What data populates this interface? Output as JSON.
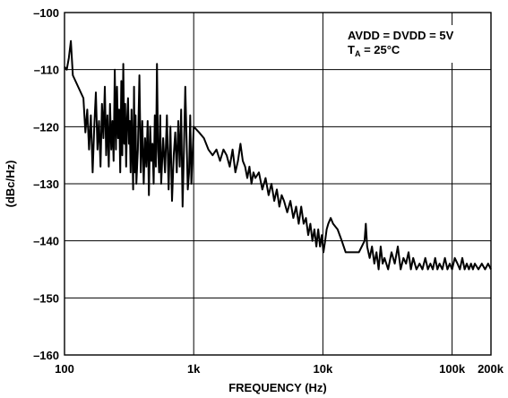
{
  "chart_data": {
    "type": "line",
    "title": "",
    "xlabel": "FREQUENCY (Hz)",
    "ylabel": "(dBc/Hz)",
    "x_scale": "log",
    "xlim": [
      100,
      200000
    ],
    "ylim": [
      -160,
      -100
    ],
    "grid": true,
    "x_ticks": [
      {
        "value": 100,
        "label": "100"
      },
      {
        "value": 1000,
        "label": "1k"
      },
      {
        "value": 10000,
        "label": "10k"
      },
      {
        "value": 100000,
        "label": "100k"
      },
      {
        "value": 200000,
        "label": "200k"
      }
    ],
    "y_ticks": [
      {
        "value": -100,
        "label": "–100"
      },
      {
        "value": -110,
        "label": "–110"
      },
      {
        "value": -120,
        "label": "–120"
      },
      {
        "value": -130,
        "label": "–130"
      },
      {
        "value": -140,
        "label": "–140"
      },
      {
        "value": -150,
        "label": "–150"
      },
      {
        "value": -160,
        "label": "–160"
      }
    ],
    "annotation": {
      "line1": "AVDD = DVDD = 5V",
      "line2_main": "T",
      "line2_sub": "A",
      "line2_rest": " = 25°C",
      "placement": "top-right"
    },
    "series": [
      {
        "color": "#000000",
        "points": [
          [
            100,
            -109.5
          ],
          [
            104,
            -110
          ],
          [
            108,
            -108
          ],
          [
            112,
            -105
          ],
          [
            116,
            -111
          ],
          [
            140,
            -115
          ],
          [
            145,
            -121
          ],
          [
            150,
            -117
          ],
          [
            155,
            -124
          ],
          [
            160,
            -118
          ],
          [
            165,
            -128
          ],
          [
            170,
            -120
          ],
          [
            175,
            -114
          ],
          [
            180,
            -124
          ],
          [
            185,
            -119
          ],
          [
            190,
            -127
          ],
          [
            195,
            -116
          ],
          [
            200,
            -122
          ],
          [
            205,
            -113
          ],
          [
            210,
            -125
          ],
          [
            215,
            -118
          ],
          [
            220,
            -127
          ],
          [
            225,
            -116
          ],
          [
            230,
            -124
          ],
          [
            235,
            -119
          ],
          [
            240,
            -126
          ],
          [
            245,
            -110
          ],
          [
            250,
            -124
          ],
          [
            255,
            -113
          ],
          [
            260,
            -122
          ],
          [
            265,
            -117
          ],
          [
            270,
            -128
          ],
          [
            275,
            -112
          ],
          [
            280,
            -125
          ],
          [
            285,
            -109
          ],
          [
            290,
            -123
          ],
          [
            295,
            -116
          ],
          [
            300,
            -127
          ],
          [
            305,
            -119
          ],
          [
            310,
            -115
          ],
          [
            315,
            -123
          ],
          [
            320,
            -119
          ],
          [
            325,
            -128
          ],
          [
            330,
            -117
          ],
          [
            335,
            -124
          ],
          [
            340,
            -131
          ],
          [
            345,
            -113
          ],
          [
            350,
            -128
          ],
          [
            355,
            -118
          ],
          [
            360,
            -130
          ],
          [
            370,
            -124
          ],
          [
            380,
            -111
          ],
          [
            390,
            -128
          ],
          [
            400,
            -119
          ],
          [
            410,
            -130
          ],
          [
            420,
            -122
          ],
          [
            430,
            -127
          ],
          [
            440,
            -119
          ],
          [
            450,
            -132
          ],
          [
            460,
            -120
          ],
          [
            470,
            -126
          ],
          [
            480,
            -123
          ],
          [
            490,
            -130
          ],
          [
            500,
            -118
          ],
          [
            510,
            -127
          ],
          [
            520,
            -109
          ],
          [
            530,
            -124
          ],
          [
            540,
            -128
          ],
          [
            550,
            -118
          ],
          [
            560,
            -130
          ],
          [
            580,
            -122
          ],
          [
            600,
            -128
          ],
          [
            620,
            -118
          ],
          [
            640,
            -131
          ],
          [
            660,
            -120
          ],
          [
            680,
            -133
          ],
          [
            700,
            -125
          ],
          [
            720,
            -121
          ],
          [
            740,
            -128
          ],
          [
            760,
            -119
          ],
          [
            780,
            -127
          ],
          [
            800,
            -117
          ],
          [
            820,
            -134
          ],
          [
            840,
            -124
          ],
          [
            860,
            -113
          ],
          [
            880,
            -122
          ],
          [
            900,
            -131
          ],
          [
            920,
            -128
          ],
          [
            940,
            -118
          ],
          [
            960,
            -130
          ],
          [
            1000,
            -120
          ],
          [
            1100,
            -121
          ],
          [
            1200,
            -122
          ],
          [
            1300,
            -124
          ],
          [
            1400,
            -125
          ],
          [
            1500,
            -124
          ],
          [
            1600,
            -126
          ],
          [
            1700,
            -124
          ],
          [
            1800,
            -125
          ],
          [
            1900,
            -127
          ],
          [
            2000,
            -124
          ],
          [
            2100,
            -128
          ],
          [
            2200,
            -126
          ],
          [
            2300,
            -123
          ],
          [
            2400,
            -126
          ],
          [
            2500,
            -127
          ],
          [
            2600,
            -129
          ],
          [
            2700,
            -127
          ],
          [
            2800,
            -130
          ],
          [
            2900,
            -128
          ],
          [
            3000,
            -129
          ],
          [
            3200,
            -128
          ],
          [
            3400,
            -131
          ],
          [
            3600,
            -129
          ],
          [
            3800,
            -132
          ],
          [
            4000,
            -130
          ],
          [
            4200,
            -133
          ],
          [
            4400,
            -131
          ],
          [
            4600,
            -134
          ],
          [
            4800,
            -132
          ],
          [
            5000,
            -133
          ],
          [
            5300,
            -135
          ],
          [
            5600,
            -133
          ],
          [
            5900,
            -136
          ],
          [
            6200,
            -134
          ],
          [
            6500,
            -137
          ],
          [
            6800,
            -134
          ],
          [
            7100,
            -137
          ],
          [
            7400,
            -136
          ],
          [
            7700,
            -139
          ],
          [
            8000,
            -137
          ],
          [
            8300,
            -140
          ],
          [
            8600,
            -138
          ],
          [
            8900,
            -141
          ],
          [
            9200,
            -138
          ],
          [
            9500,
            -141
          ],
          [
            9800,
            -139
          ],
          [
            10100,
            -142
          ],
          [
            10400,
            -140
          ],
          [
            10700,
            -138
          ],
          [
            11000,
            -137
          ],
          [
            11500,
            -136
          ],
          [
            12000,
            -137
          ],
          [
            13000,
            -138
          ],
          [
            14000,
            -140
          ],
          [
            15000,
            -142
          ],
          [
            17000,
            -142
          ],
          [
            19000,
            -142
          ],
          [
            20000,
            -141
          ],
          [
            21000,
            -140
          ],
          [
            21500,
            -137
          ],
          [
            22000,
            -141
          ],
          [
            23000,
            -143
          ],
          [
            24000,
            -141
          ],
          [
            25000,
            -144
          ],
          [
            26000,
            -142
          ],
          [
            27000,
            -145
          ],
          [
            28000,
            -141
          ],
          [
            29000,
            -144
          ],
          [
            30000,
            -143
          ],
          [
            32000,
            -145
          ],
          [
            34000,
            -142
          ],
          [
            36000,
            -144
          ],
          [
            38000,
            -141
          ],
          [
            40000,
            -145
          ],
          [
            42000,
            -143
          ],
          [
            44000,
            -144
          ],
          [
            46000,
            -142
          ],
          [
            48000,
            -145
          ],
          [
            50000,
            -143
          ],
          [
            53000,
            -145
          ],
          [
            56000,
            -144
          ],
          [
            59000,
            -145
          ],
          [
            62000,
            -143
          ],
          [
            65000,
            -145
          ],
          [
            68000,
            -144
          ],
          [
            71000,
            -145
          ],
          [
            74000,
            -143
          ],
          [
            77000,
            -145
          ],
          [
            80000,
            -144
          ],
          [
            84000,
            -145
          ],
          [
            88000,
            -143
          ],
          [
            92000,
            -145
          ],
          [
            96000,
            -144
          ],
          [
            100000,
            -145
          ],
          [
            105000,
            -143
          ],
          [
            110000,
            -144
          ],
          [
            115000,
            -145
          ],
          [
            120000,
            -143
          ],
          [
            125000,
            -145
          ],
          [
            130000,
            -144
          ],
          [
            135000,
            -145
          ],
          [
            140000,
            -144
          ],
          [
            145000,
            -145
          ],
          [
            150000,
            -144
          ],
          [
            160000,
            -145
          ],
          [
            170000,
            -144
          ],
          [
            180000,
            -145
          ],
          [
            190000,
            -144
          ],
          [
            200000,
            -145
          ]
        ]
      }
    ]
  }
}
